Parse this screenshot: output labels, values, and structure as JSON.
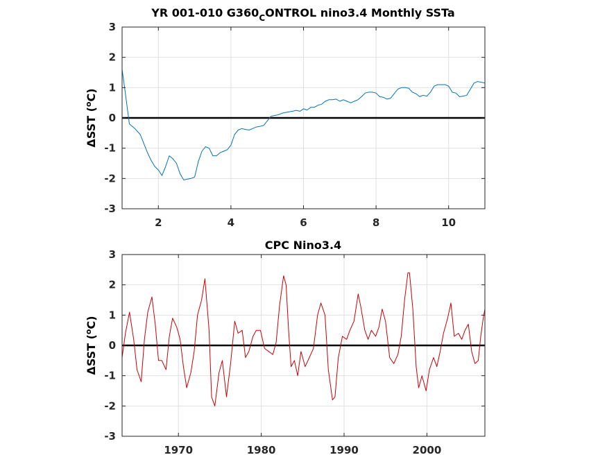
{
  "chart_data": [
    {
      "type": "line",
      "title": "YR 001-010 G360",
      "title_sub": "C",
      "title_rest": "ONTROL nino3.4 Monthly SSTa",
      "ylabel_delta": "Δ",
      "ylabel_main": "SST (",
      "ylabel_sup": "o",
      "ylabel_end": "C)",
      "xlim": [
        1,
        11
      ],
      "ylim": [
        -3,
        3
      ],
      "xticks": [
        2,
        4,
        6,
        8,
        10
      ],
      "yticks": [
        -3,
        -2,
        -1,
        0,
        1,
        2,
        3
      ],
      "grid": true,
      "zero_line": true,
      "series": [
        {
          "color": "#0072bd",
          "x": [
            1.0,
            1.08,
            1.2,
            1.35,
            1.5,
            1.6,
            1.7,
            1.8,
            1.9,
            2.0,
            2.1,
            2.2,
            2.3,
            2.4,
            2.5,
            2.6,
            2.7,
            2.8,
            2.9,
            3.0,
            3.1,
            3.2,
            3.3,
            3.4,
            3.5,
            3.6,
            3.7,
            3.8,
            3.9,
            4.0,
            4.1,
            4.2,
            4.3,
            4.4,
            4.5,
            4.6,
            4.7,
            4.8,
            4.9,
            5.0,
            5.1,
            5.2,
            5.3,
            5.4,
            5.5,
            5.6,
            5.7,
            5.8,
            5.9,
            6.0,
            6.1,
            6.2,
            6.3,
            6.4,
            6.5,
            6.6,
            6.7,
            6.8,
            6.9,
            7.0,
            7.1,
            7.2,
            7.3,
            7.4,
            7.5,
            7.6,
            7.7,
            7.8,
            7.9,
            8.0,
            8.1,
            8.2,
            8.3,
            8.4,
            8.5,
            8.6,
            8.7,
            8.8,
            8.9,
            9.0,
            9.1,
            9.2,
            9.3,
            9.4,
            9.5,
            9.6,
            9.7,
            9.8,
            9.9,
            10.0,
            10.1,
            10.2,
            10.3,
            10.4,
            10.5,
            10.6,
            10.7,
            10.8,
            10.9,
            11.0
          ],
          "y": [
            1.6,
            0.9,
            -0.2,
            -0.35,
            -0.55,
            -0.85,
            -1.15,
            -1.4,
            -1.6,
            -1.72,
            -1.9,
            -1.6,
            -1.25,
            -1.35,
            -1.5,
            -1.85,
            -2.05,
            -2.02,
            -2.0,
            -1.95,
            -1.45,
            -1.1,
            -0.95,
            -1.0,
            -1.25,
            -1.25,
            -1.15,
            -1.1,
            -1.05,
            -0.9,
            -0.55,
            -0.4,
            -0.35,
            -0.38,
            -0.4,
            -0.35,
            -0.3,
            -0.28,
            -0.25,
            -0.1,
            0.05,
            0.08,
            0.1,
            0.15,
            0.18,
            0.2,
            0.22,
            0.25,
            0.22,
            0.3,
            0.26,
            0.35,
            0.35,
            0.42,
            0.45,
            0.55,
            0.6,
            0.6,
            0.62,
            0.55,
            0.6,
            0.55,
            0.5,
            0.55,
            0.6,
            0.7,
            0.82,
            0.85,
            0.85,
            0.82,
            0.7,
            0.68,
            0.62,
            0.65,
            0.8,
            0.95,
            1.0,
            1.0,
            0.98,
            0.85,
            0.8,
            0.7,
            0.75,
            0.72,
            0.85,
            1.05,
            1.1,
            1.1,
            1.1,
            1.05,
            0.85,
            0.82,
            0.7,
            0.72,
            0.75,
            0.95,
            1.15,
            1.2,
            1.18,
            1.15
          ]
        }
      ]
    },
    {
      "type": "line",
      "title": "CPC Nino3.4",
      "ylabel_delta": "Δ",
      "ylabel_main": "SST (",
      "ylabel_sup": "o",
      "ylabel_end": "C)",
      "xlim": [
        1963.2,
        2007.0
      ],
      "ylim": [
        -3,
        3
      ],
      "xticks": [
        1970,
        1980,
        1990,
        2000
      ],
      "yticks": [
        -3,
        -2,
        -1,
        0,
        1,
        2,
        3
      ],
      "grid": true,
      "zero_line": true,
      "series": [
        {
          "color": "#cc0000",
          "x": [
            1963.2,
            1963.6,
            1964.1,
            1964.6,
            1965.0,
            1965.5,
            1965.9,
            1966.3,
            1966.8,
            1967.2,
            1967.6,
            1968.0,
            1968.5,
            1968.9,
            1969.3,
            1969.8,
            1970.2,
            1970.6,
            1971.0,
            1971.5,
            1971.9,
            1972.3,
            1972.8,
            1973.2,
            1973.7,
            1974.0,
            1974.4,
            1974.9,
            1975.3,
            1975.8,
            1976.3,
            1976.8,
            1977.2,
            1977.7,
            1978.1,
            1978.5,
            1979.0,
            1979.4,
            1979.9,
            1980.4,
            1980.9,
            1981.4,
            1981.8,
            1982.2,
            1982.7,
            1983.0,
            1983.3,
            1983.6,
            1984.0,
            1984.4,
            1984.8,
            1985.3,
            1985.8,
            1986.3,
            1986.8,
            1987.2,
            1987.7,
            1988.1,
            1988.6,
            1988.9,
            1989.3,
            1989.8,
            1990.3,
            1990.7,
            1991.2,
            1991.7,
            1992.0,
            1992.5,
            1992.9,
            1993.3,
            1993.8,
            1994.2,
            1994.6,
            1995.0,
            1995.5,
            1996.0,
            1996.5,
            1996.9,
            1997.3,
            1997.7,
            1997.9,
            1998.3,
            1998.7,
            1999.0,
            1999.4,
            1999.9,
            2000.3,
            2000.8,
            2001.2,
            2001.6,
            2002.0,
            2002.5,
            2002.9,
            2003.3,
            2003.8,
            2004.2,
            2004.6,
            2005.0,
            2005.4,
            2005.8,
            2006.2,
            2006.5,
            2006.8,
            2007.0
          ],
          "y": [
            -0.4,
            0.4,
            1.1,
            0.2,
            -0.8,
            -1.2,
            0.2,
            1.1,
            1.6,
            0.7,
            -0.5,
            -0.5,
            -0.8,
            0.3,
            0.9,
            0.6,
            0.2,
            -0.7,
            -1.4,
            -0.9,
            -0.2,
            1.0,
            1.5,
            2.2,
            0.5,
            -1.7,
            -2.0,
            -0.9,
            -0.5,
            -1.7,
            -0.6,
            0.8,
            0.4,
            0.5,
            -0.4,
            -0.2,
            0.3,
            0.5,
            0.5,
            -0.1,
            -0.2,
            -0.3,
            0.1,
            1.3,
            2.3,
            2.0,
            0.5,
            -0.7,
            -0.5,
            -1.0,
            -0.2,
            -0.7,
            -0.4,
            -0.1,
            1.0,
            1.4,
            1.0,
            -0.8,
            -1.8,
            -1.7,
            -0.4,
            0.3,
            0.2,
            0.5,
            0.8,
            1.7,
            1.3,
            0.5,
            0.2,
            0.5,
            0.3,
            0.6,
            1.2,
            0.8,
            -0.4,
            -0.6,
            -0.3,
            0.3,
            1.5,
            2.4,
            2.4,
            1.2,
            -0.7,
            -1.4,
            -1.0,
            -1.5,
            -0.8,
            -0.4,
            -0.7,
            -0.2,
            0.4,
            0.9,
            1.4,
            0.3,
            0.4,
            0.2,
            0.5,
            0.7,
            -0.2,
            -0.6,
            -0.5,
            0.3,
            0.9,
            1.2
          ]
        }
      ]
    }
  ]
}
